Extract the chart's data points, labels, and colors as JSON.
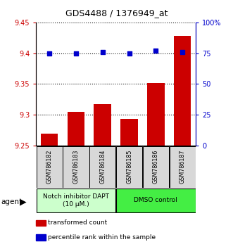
{
  "title": "GDS4488 / 1376949_at",
  "categories": [
    "GSM786182",
    "GSM786183",
    "GSM786184",
    "GSM786185",
    "GSM786186",
    "GSM786187"
  ],
  "bar_values": [
    9.27,
    9.305,
    9.317,
    9.293,
    9.352,
    9.428
  ],
  "percentile_values": [
    75,
    75,
    76,
    75,
    77,
    76
  ],
  "bar_color": "#cc0000",
  "dot_color": "#0000cc",
  "ylim_left": [
    9.25,
    9.45
  ],
  "ylim_right": [
    0,
    100
  ],
  "yticks_left": [
    9.25,
    9.3,
    9.35,
    9.4,
    9.45
  ],
  "ytick_labels_left": [
    "9.25",
    "9.3",
    "9.35",
    "9.4",
    "9.45"
  ],
  "yticks_right": [
    0,
    25,
    50,
    75,
    100
  ],
  "ytick_labels_right": [
    "0",
    "25",
    "50",
    "75",
    "100%"
  ],
  "groups": [
    {
      "label": "Notch inhibitor DAPT\n(10 μM.)",
      "start": 0,
      "end": 3,
      "color": "#ccffcc"
    },
    {
      "label": "DMSO control",
      "start": 3,
      "end": 6,
      "color": "#44ee44"
    }
  ],
  "legend_items": [
    {
      "color": "#cc0000",
      "label": "transformed count"
    },
    {
      "color": "#0000cc",
      "label": "percentile rank within the sample"
    }
  ],
  "bar_bottom": 9.25,
  "bar_width": 0.65,
  "col_bg": "#d8d8d8",
  "background_color": "#ffffff"
}
